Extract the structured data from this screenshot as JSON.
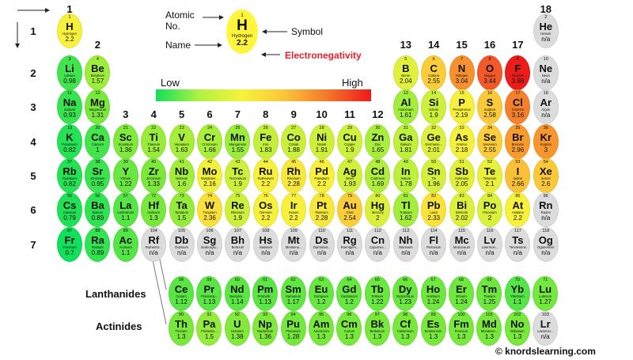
{
  "legend": {
    "atomic_no_label": "Atomic\nNo.",
    "name_label": "Name",
    "symbol_label": "Symbol",
    "electronegativity_label": "Electronegativity",
    "low_label": "Low",
    "high_label": "High",
    "example": {
      "n": "1",
      "s": "H",
      "m": "Hydrogen",
      "e": "2.2"
    }
  },
  "group_labels": [
    "1",
    "2",
    "3",
    "4",
    "5",
    "6",
    "7",
    "8",
    "9",
    "10",
    "11",
    "12",
    "13",
    "14",
    "15",
    "16",
    "17",
    "18"
  ],
  "period_labels": [
    "1",
    "2",
    "3",
    "4",
    "5",
    "6",
    "7"
  ],
  "lanthanides_label": "Lanthanides",
  "actinides_label": "Actinides",
  "copyright": "© knordslearning.com",
  "colors": {
    "high_red": "#ee1a1a",
    "low_green": "#10e05b",
    "na_gray": "#dcdcdc",
    "electroneg_text": "#e8202a"
  },
  "elements": [
    {
      "n": "1",
      "s": "H",
      "m": "Hydrogen",
      "e": "2.2",
      "p": 1,
      "g": 1
    },
    {
      "n": "2",
      "s": "He",
      "m": "Helium",
      "e": "n/a",
      "p": 1,
      "g": 18
    },
    {
      "n": "3",
      "s": "Li",
      "m": "Lithium",
      "e": "0.98",
      "p": 2,
      "g": 1
    },
    {
      "n": "4",
      "s": "Be",
      "m": "Beryllium",
      "e": "1.57",
      "p": 2,
      "g": 2
    },
    {
      "n": "5",
      "s": "B",
      "m": "Boron",
      "e": "2.04",
      "p": 2,
      "g": 13
    },
    {
      "n": "6",
      "s": "C",
      "m": "Carbon",
      "e": "2.55",
      "p": 2,
      "g": 14
    },
    {
      "n": "7",
      "s": "N",
      "m": "Nitrogen",
      "e": "3.04",
      "p": 2,
      "g": 15
    },
    {
      "n": "8",
      "s": "O",
      "m": "Oxygen",
      "e": "3.44",
      "p": 2,
      "g": 16
    },
    {
      "n": "9",
      "s": "F",
      "m": "Fluorine",
      "e": "3.98",
      "p": 2,
      "g": 17
    },
    {
      "n": "10",
      "s": "Ne",
      "m": "Neon",
      "e": "n/a",
      "p": 2,
      "g": 18
    },
    {
      "n": "11",
      "s": "Na",
      "m": "Sodium",
      "e": "0.93",
      "p": 3,
      "g": 1
    },
    {
      "n": "12",
      "s": "Mg",
      "m": "Magnesium",
      "e": "1.31",
      "p": 3,
      "g": 2
    },
    {
      "n": "13",
      "s": "Al",
      "m": "Aluminium",
      "e": "1.61",
      "p": 3,
      "g": 13
    },
    {
      "n": "14",
      "s": "Si",
      "m": "Silicon",
      "e": "1.9",
      "p": 3,
      "g": 14
    },
    {
      "n": "15",
      "s": "P",
      "m": "Phosphorus",
      "e": "2.19",
      "p": 3,
      "g": 15
    },
    {
      "n": "16",
      "s": "S",
      "m": "Sulphur",
      "e": "2.58",
      "p": 3,
      "g": 16
    },
    {
      "n": "17",
      "s": "Cl",
      "m": "Chlorine",
      "e": "3.16",
      "p": 3,
      "g": 17
    },
    {
      "n": "18",
      "s": "Ar",
      "m": "Argon",
      "e": "n/a",
      "p": 3,
      "g": 18
    },
    {
      "n": "19",
      "s": "K",
      "m": "Potassium",
      "e": "0.82",
      "p": 4,
      "g": 1
    },
    {
      "n": "20",
      "s": "Ca",
      "m": "Calcium",
      "e": "1",
      "p": 4,
      "g": 2
    },
    {
      "n": "21",
      "s": "Sc",
      "m": "Scandium",
      "e": "1.36",
      "p": 4,
      "g": 3
    },
    {
      "n": "22",
      "s": "Ti",
      "m": "Titanium",
      "e": "1.54",
      "p": 4,
      "g": 4
    },
    {
      "n": "23",
      "s": "V",
      "m": "Vanadium",
      "e": "1.63",
      "p": 4,
      "g": 5
    },
    {
      "n": "24",
      "s": "Cr",
      "m": "Chromium",
      "e": "1.66",
      "p": 4,
      "g": 6
    },
    {
      "n": "25",
      "s": "Mn",
      "m": "Manganese",
      "e": "1.55",
      "p": 4,
      "g": 7
    },
    {
      "n": "26",
      "s": "Fe",
      "m": "Iron",
      "e": "1.83",
      "p": 4,
      "g": 8
    },
    {
      "n": "27",
      "s": "Co",
      "m": "Cobalt",
      "e": "1.88",
      "p": 4,
      "g": 9
    },
    {
      "n": "28",
      "s": "Ni",
      "m": "Nickel",
      "e": "1.91",
      "p": 4,
      "g": 10
    },
    {
      "n": "29",
      "s": "Cu",
      "m": "Copper",
      "e": "1.9",
      "p": 4,
      "g": 11
    },
    {
      "n": "30",
      "s": "Zn",
      "m": "Zinc",
      "e": "1.65",
      "p": 4,
      "g": 12
    },
    {
      "n": "31",
      "s": "Ga",
      "m": "Gallium",
      "e": "1.81",
      "p": 4,
      "g": 13
    },
    {
      "n": "32",
      "s": "Ge",
      "m": "Germaniu...",
      "e": "2.01",
      "p": 4,
      "g": 14
    },
    {
      "n": "33",
      "s": "As",
      "m": "Arsenic",
      "e": "2.18",
      "p": 4,
      "g": 15
    },
    {
      "n": "34",
      "s": "Se",
      "m": "Selenium",
      "e": "2.55",
      "p": 4,
      "g": 16
    },
    {
      "n": "35",
      "s": "Br",
      "m": "Bromine",
      "e": "2.96",
      "p": 4,
      "g": 17
    },
    {
      "n": "36",
      "s": "Kr",
      "m": "Krypton",
      "e": "3",
      "p": 4,
      "g": 18
    },
    {
      "n": "37",
      "s": "Rb",
      "m": "Rubidium",
      "e": "0.82",
      "p": 5,
      "g": 1
    },
    {
      "n": "38",
      "s": "Sr",
      "m": "Strontium",
      "e": "0.95",
      "p": 5,
      "g": 2
    },
    {
      "n": "39",
      "s": "Y",
      "m": "Yttrium",
      "e": "1.22",
      "p": 5,
      "g": 3
    },
    {
      "n": "40",
      "s": "Zr",
      "m": "Zirconium",
      "e": "1.33",
      "p": 5,
      "g": 4
    },
    {
      "n": "41",
      "s": "Nb",
      "m": "Niobium",
      "e": "1.6",
      "p": 5,
      "g": 5
    },
    {
      "n": "42",
      "s": "Mo",
      "m": "Molybden...",
      "e": "2.16",
      "p": 5,
      "g": 6
    },
    {
      "n": "43",
      "s": "Tc",
      "m": "Technetium",
      "e": "1.9",
      "p": 5,
      "g": 7
    },
    {
      "n": "44",
      "s": "Ru",
      "m": "Ruthenium",
      "e": "2.2",
      "p": 5,
      "g": 8
    },
    {
      "n": "45",
      "s": "Rh",
      "m": "Rhodium",
      "e": "2.28",
      "p": 5,
      "g": 9
    },
    {
      "n": "46",
      "s": "Pd",
      "m": "Palladium",
      "e": "2.2",
      "p": 5,
      "g": 10
    },
    {
      "n": "47",
      "s": "Ag",
      "m": "Silver",
      "e": "1.93",
      "p": 5,
      "g": 11
    },
    {
      "n": "48",
      "s": "Cd",
      "m": "Cadmium",
      "e": "1.69",
      "p": 5,
      "g": 12
    },
    {
      "n": "49",
      "s": "In",
      "m": "Indium",
      "e": "1.78",
      "p": 5,
      "g": 13
    },
    {
      "n": "50",
      "s": "Sn",
      "m": "Tin",
      "e": "1.96",
      "p": 5,
      "g": 14
    },
    {
      "n": "51",
      "s": "Sb",
      "m": "Antimony",
      "e": "2.05",
      "p": 5,
      "g": 15
    },
    {
      "n": "52",
      "s": "Te",
      "m": "Tellurium",
      "e": "2.1",
      "p": 5,
      "g": 16
    },
    {
      "n": "53",
      "s": "I",
      "m": "Iodine",
      "e": "2.66",
      "p": 5,
      "g": 17
    },
    {
      "n": "54",
      "s": "Xe",
      "m": "Xenon",
      "e": "2.6",
      "p": 5,
      "g": 18
    },
    {
      "n": "55",
      "s": "Cs",
      "m": "Caesium",
      "e": "0.79",
      "p": 6,
      "g": 1
    },
    {
      "n": "56",
      "s": "Ba",
      "m": "Barium",
      "e": "0.89",
      "p": 6,
      "g": 2
    },
    {
      "n": "57",
      "s": "La",
      "m": "Lanthanum",
      "e": "1.1",
      "p": 6,
      "g": 3
    },
    {
      "n": "72",
      "s": "Hf",
      "m": "Hafnium",
      "e": "1.3",
      "p": 6,
      "g": 4
    },
    {
      "n": "73",
      "s": "Ta",
      "m": "Tantalum",
      "e": "1.5",
      "p": 6,
      "g": 5
    },
    {
      "n": "74",
      "s": "W",
      "m": "Tungsten",
      "e": "2.36",
      "p": 6,
      "g": 6
    },
    {
      "n": "75",
      "s": "Re",
      "m": "Rhenium",
      "e": "1.9",
      "p": 6,
      "g": 7
    },
    {
      "n": "76",
      "s": "Os",
      "m": "Osmium",
      "e": "2.2",
      "p": 6,
      "g": 8
    },
    {
      "n": "77",
      "s": "Ir",
      "m": "Iridium",
      "e": "2.2",
      "p": 6,
      "g": 9
    },
    {
      "n": "78",
      "s": "Pt",
      "m": "Platinum",
      "e": "2.28",
      "p": 6,
      "g": 10
    },
    {
      "n": "79",
      "s": "Au",
      "m": "Gold",
      "e": "2.54",
      "p": 6,
      "g": 11
    },
    {
      "n": "80",
      "s": "Hg",
      "m": "Mercury",
      "e": "2",
      "p": 6,
      "g": 12
    },
    {
      "n": "81",
      "s": "Tl",
      "m": "Thallium",
      "e": "1.62",
      "p": 6,
      "g": 13
    },
    {
      "n": "82",
      "s": "Pb",
      "m": "Lead",
      "e": "2.33",
      "p": 6,
      "g": 14
    },
    {
      "n": "83",
      "s": "Bi",
      "m": "Bismuth",
      "e": "2.02",
      "p": 6,
      "g": 15
    },
    {
      "n": "84",
      "s": "Po",
      "m": "Polonium",
      "e": "2",
      "p": 6,
      "g": 16
    },
    {
      "n": "85",
      "s": "At",
      "m": "Astatine",
      "e": "2.2",
      "p": 6,
      "g": 17
    },
    {
      "n": "86",
      "s": "Rn",
      "m": "Radon",
      "e": "n/a",
      "p": 6,
      "g": 18
    },
    {
      "n": "87",
      "s": "Fr",
      "m": "Francium",
      "e": "0.7",
      "p": 7,
      "g": 1
    },
    {
      "n": "88",
      "s": "Ra",
      "m": "Radium",
      "e": "0.89",
      "p": 7,
      "g": 2
    },
    {
      "n": "89",
      "s": "Ac",
      "m": "Actinium",
      "e": "1.1",
      "p": 7,
      "g": 3
    },
    {
      "n": "104",
      "s": "Rf",
      "m": "Rutherfor...",
      "e": "n/a",
      "p": 7,
      "g": 4
    },
    {
      "n": "105",
      "s": "Db",
      "m": "Dubnium",
      "e": "n/a",
      "p": 7,
      "g": 5
    },
    {
      "n": "106",
      "s": "Sg",
      "m": "Seaborgiu...",
      "e": "n/a",
      "p": 7,
      "g": 6
    },
    {
      "n": "107",
      "s": "Bh",
      "m": "Bohrium",
      "e": "n/a",
      "p": 7,
      "g": 7
    },
    {
      "n": "108",
      "s": "Hs",
      "m": "Hassium",
      "e": "n/a",
      "p": 7,
      "g": 8
    },
    {
      "n": "109",
      "s": "Mt",
      "m": "Meitneriu...",
      "e": "n/a",
      "p": 7,
      "g": 9
    },
    {
      "n": "110",
      "s": "Ds",
      "m": "Darmstad...",
      "e": "n/a",
      "p": 7,
      "g": 10
    },
    {
      "n": "111",
      "s": "Rg",
      "m": "Roentgeni...",
      "e": "n/a",
      "p": 7,
      "g": 11
    },
    {
      "n": "112",
      "s": "Cn",
      "m": "Copernici...",
      "e": "n/a",
      "p": 7,
      "g": 12
    },
    {
      "n": "113",
      "s": "Nh",
      "m": "Nihonium",
      "e": "n/a",
      "p": 7,
      "g": 13
    },
    {
      "n": "114",
      "s": "Fl",
      "m": "Flerovium",
      "e": "n/a",
      "p": 7,
      "g": 14
    },
    {
      "n": "115",
      "s": "Mc",
      "m": "Moscovium",
      "e": "n/a",
      "p": 7,
      "g": 15
    },
    {
      "n": "116",
      "s": "Lv",
      "m": "Livermori...",
      "e": "n/a",
      "p": 7,
      "g": 16
    },
    {
      "n": "117",
      "s": "Ts",
      "m": "Tennessine",
      "e": "n/a",
      "p": 7,
      "g": 17
    },
    {
      "n": "118",
      "s": "Og",
      "m": "Oganesson",
      "e": "n/a",
      "p": 7,
      "g": 18
    }
  ],
  "lanthanides": [
    {
      "n": "58",
      "s": "Ce",
      "m": "Cerium",
      "e": "1.12"
    },
    {
      "n": "59",
      "s": "Pr",
      "m": "Praseody...",
      "e": "1.13"
    },
    {
      "n": "60",
      "s": "Nd",
      "m": "Neodymi...",
      "e": "1.14"
    },
    {
      "n": "61",
      "s": "Pm",
      "m": "Prometh...",
      "e": "1.13"
    },
    {
      "n": "62",
      "s": "Sm",
      "m": "Samarium",
      "e": "1.17"
    },
    {
      "n": "63",
      "s": "Eu",
      "m": "Europium",
      "e": "1.2"
    },
    {
      "n": "64",
      "s": "Gd",
      "m": "Gadolinium",
      "e": "1.2"
    },
    {
      "n": "65",
      "s": "Tb",
      "m": "Terbium",
      "e": "1.22"
    },
    {
      "n": "66",
      "s": "Dy",
      "m": "Dysprosium",
      "e": "1.23"
    },
    {
      "n": "67",
      "s": "Ho",
      "m": "Holmium",
      "e": "1.24"
    },
    {
      "n": "68",
      "s": "Er",
      "m": "Erbium",
      "e": "1.24"
    },
    {
      "n": "69",
      "s": "Tm",
      "m": "Thulium",
      "e": "1.25"
    },
    {
      "n": "70",
      "s": "Yb",
      "m": "Ytterbium",
      "e": "1.1"
    },
    {
      "n": "71",
      "s": "Lu",
      "m": "Lutetium",
      "e": "1.27"
    }
  ],
  "actinides": [
    {
      "n": "90",
      "s": "Th",
      "m": "Thorium",
      "e": "1.3"
    },
    {
      "n": "91",
      "s": "Pa",
      "m": "Protactini...",
      "e": "1.5"
    },
    {
      "n": "92",
      "s": "U",
      "m": "Uranium",
      "e": "1.38"
    },
    {
      "n": "93",
      "s": "Np",
      "m": "Neptunium",
      "e": "1.36"
    },
    {
      "n": "94",
      "s": "Pu",
      "m": "Plutonium",
      "e": "1.28"
    },
    {
      "n": "95",
      "s": "Am",
      "m": "Americium",
      "e": "1.3"
    },
    {
      "n": "96",
      "s": "Cm",
      "m": "Curium",
      "e": "1.3"
    },
    {
      "n": "97",
      "s": "Bk",
      "m": "Berkelium",
      "e": "1.3"
    },
    {
      "n": "98",
      "s": "Cf",
      "m": "Californium",
      "e": "1.3"
    },
    {
      "n": "99",
      "s": "Es",
      "m": "Einsteinium",
      "e": "1.3"
    },
    {
      "n": "100",
      "s": "Fm",
      "m": "Fermium",
      "e": "1.3"
    },
    {
      "n": "101",
      "s": "Md",
      "m": "Mendelev...",
      "e": "1.3"
    },
    {
      "n": "102",
      "s": "No",
      "m": "Nobelium",
      "e": "1.3"
    },
    {
      "n": "103",
      "s": "Lr",
      "m": "Lawrenci...",
      "e": "n/a"
    }
  ]
}
